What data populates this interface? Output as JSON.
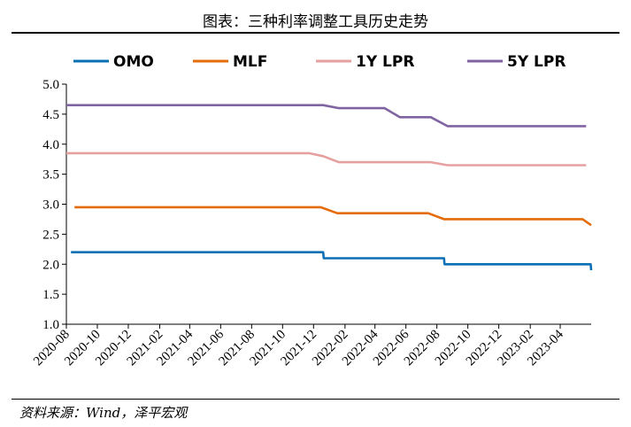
{
  "title": "图表：三种利率调整工具历史走势",
  "source": "资料来源：Wind，泽平宏观",
  "chart_data": {
    "type": "line",
    "title": "图表：三种利率调整工具历史走势",
    "xlabel": "",
    "ylabel": "",
    "ylim": [
      1.0,
      5.0
    ],
    "y_ticks": [
      "1.0",
      "1.5",
      "2.0",
      "2.5",
      "3.0",
      "3.5",
      "4.0",
      "4.5",
      "5.0"
    ],
    "xlim": [
      "2020-08-01",
      "2023-06-01"
    ],
    "x_ticks": [
      "2020-08",
      "2020-10",
      "2020-12",
      "2021-02",
      "2021-04",
      "2021-06",
      "2021-08",
      "2021-10",
      "2021-12",
      "2022-02",
      "2022-04",
      "2022-06",
      "2022-08",
      "2022-10",
      "2022-12",
      "2023-02",
      "2023-04"
    ],
    "grid": false,
    "legend_position": "top",
    "series": [
      {
        "name": "OMO",
        "color": "#0a6fb5",
        "points": [
          [
            "2020-08-10",
            2.2
          ],
          [
            "2021-12-20",
            2.2
          ],
          [
            "2021-12-21",
            2.1
          ],
          [
            "2022-08-15",
            2.1
          ],
          [
            "2022-08-16",
            2.0
          ],
          [
            "2023-05-31",
            2.0
          ],
          [
            "2023-06-01",
            1.9
          ]
        ]
      },
      {
        "name": "MLF",
        "color": "#e46c0a",
        "points": [
          [
            "2020-08-17",
            2.95
          ],
          [
            "2021-12-15",
            2.95
          ],
          [
            "2022-01-17",
            2.85
          ],
          [
            "2022-07-15",
            2.85
          ],
          [
            "2022-08-15",
            2.75
          ],
          [
            "2023-05-15",
            2.75
          ],
          [
            "2023-06-01",
            2.65
          ]
        ]
      },
      {
        "name": "1Y LPR",
        "color": "#e6a0a0",
        "points": [
          [
            "2020-08-01",
            3.85
          ],
          [
            "2021-11-22",
            3.85
          ],
          [
            "2021-12-20",
            3.8
          ],
          [
            "2022-01-20",
            3.7
          ],
          [
            "2022-07-20",
            3.7
          ],
          [
            "2022-08-22",
            3.65
          ],
          [
            "2023-05-22",
            3.65
          ]
        ]
      },
      {
        "name": "5Y LPR",
        "color": "#8064a2",
        "points": [
          [
            "2020-08-01",
            4.65
          ],
          [
            "2021-12-20",
            4.65
          ],
          [
            "2022-01-20",
            4.6
          ],
          [
            "2022-04-20",
            4.6
          ],
          [
            "2022-05-20",
            4.45
          ],
          [
            "2022-07-20",
            4.45
          ],
          [
            "2022-08-22",
            4.3
          ],
          [
            "2023-05-22",
            4.3
          ]
        ]
      }
    ]
  }
}
